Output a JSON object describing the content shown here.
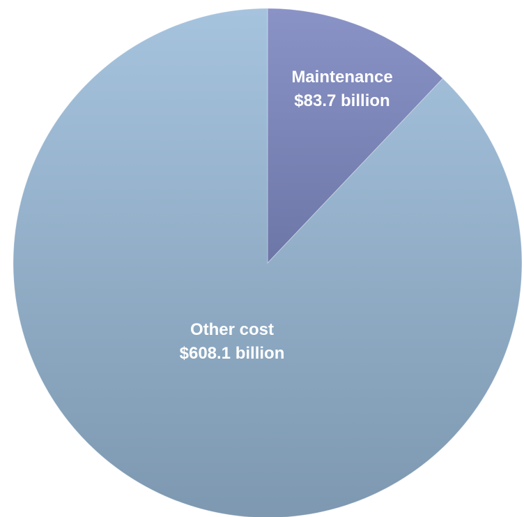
{
  "chart_data": {
    "type": "pie",
    "title": "",
    "slices": [
      {
        "name": "Maintenance",
        "value": 83.7,
        "value_label": "$83.7 billion",
        "color_top": "#8a93c6",
        "color_bottom": "#4f5a88"
      },
      {
        "name": "Other cost",
        "value": 608.1,
        "value_label": "$608.1 billion",
        "color_top": "#a6c3de",
        "color_bottom": "#7d98b0"
      }
    ],
    "start_angle": "12 o'clock",
    "direction": "clockwise",
    "legend": "none"
  }
}
